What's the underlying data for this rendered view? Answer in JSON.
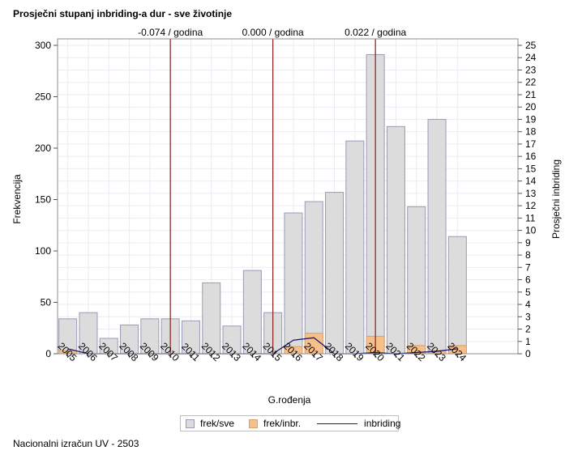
{
  "title": "Prosječni stupanj inbriding-a dur - sve životinje",
  "footer": "Nacionalni izračun UV - 2503",
  "chart_data": {
    "type": "bar",
    "categories": [
      "2005",
      "2006",
      "2007",
      "2008",
      "2009",
      "2010",
      "2011",
      "2012",
      "2013",
      "2014",
      "2015",
      "2016",
      "2017",
      "2018",
      "2019",
      "2020",
      "2021",
      "2022",
      "2023",
      "2024"
    ],
    "series": [
      {
        "name": "frek/sve",
        "axis": "left",
        "color": "#dcdcdc",
        "stroke": "#9a9ab8",
        "values": [
          34,
          40,
          15,
          28,
          34,
          34,
          32,
          69,
          27,
          81,
          40,
          137,
          148,
          157,
          207,
          291,
          221,
          143,
          228,
          114
        ]
      },
      {
        "name": "frek/inbr.",
        "axis": "left",
        "color": "#f5c08a",
        "stroke": "#d9a06a",
        "values": [
          3,
          0,
          0,
          0,
          0,
          0,
          0,
          0,
          0,
          0,
          0,
          7,
          20,
          0,
          0,
          17,
          0,
          8,
          3,
          8
        ]
      },
      {
        "name": "inbriding",
        "axis": "right",
        "type": "line",
        "color": "#1a1a7a",
        "values": [
          0.4,
          0,
          0,
          0,
          0,
          0,
          0,
          0,
          0,
          0,
          0,
          1.1,
          1.3,
          0,
          0,
          0.1,
          0,
          0.1,
          0.2,
          0.4
        ]
      }
    ],
    "left_axis": {
      "label": "Frekvencija",
      "ylim": [
        0,
        300
      ],
      "ticks": [
        0,
        50,
        100,
        150,
        200,
        250,
        300
      ]
    },
    "right_axis": {
      "label": "Prosječni inbriding",
      "ylim": [
        0,
        25
      ],
      "ticks": [
        0,
        1,
        2,
        3,
        4,
        5,
        6,
        7,
        8,
        9,
        10,
        11,
        12,
        13,
        14,
        15,
        16,
        17,
        18,
        19,
        20,
        21,
        22,
        23,
        24,
        25
      ]
    },
    "xlabel": "G.rođenja",
    "reference_lines": [
      {
        "year": "2010",
        "label": "-0.074 / godina"
      },
      {
        "year": "2015",
        "label": "0.000 / godina"
      },
      {
        "year": "2020",
        "label": "0.022 / godina"
      }
    ],
    "reference_color": "#8b1a1a",
    "grid": true,
    "legend_position": "bottom"
  }
}
